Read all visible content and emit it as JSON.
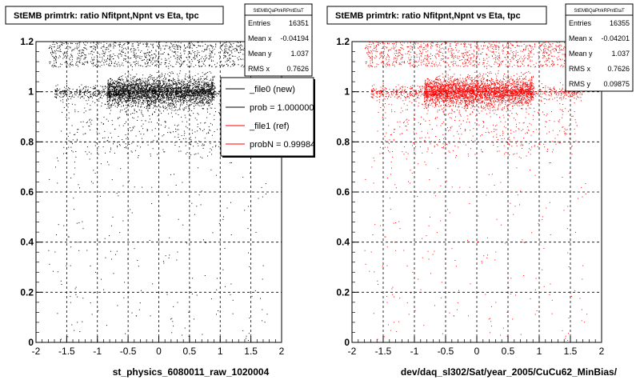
{
  "chart_data": [
    {
      "type": "scatter",
      "title": "StEMB primtrk: ratio Nfitpnt,Npnt vs Eta, tpc",
      "xlabel": "st_physics_6080011_raw_1020004",
      "ylabel": "",
      "xlim": [
        -2,
        2
      ],
      "ylim": [
        0,
        1.2
      ],
      "xticks": [
        "-2",
        "-1.5",
        "-1",
        "-0.5",
        "0",
        "0.5",
        "1",
        "1.5",
        "2"
      ],
      "yticks": [
        "0",
        "0.2",
        "0.4",
        "0.6",
        "0.8",
        "1",
        "1.2"
      ],
      "grid": true,
      "marker_color": "#000000",
      "stats": {
        "title": "StEMBQaPtrkRPntEtaT",
        "rows": [
          {
            "label": "Entries",
            "value": "16351"
          },
          {
            "label": "Mean x",
            "value": "-0.04194"
          },
          {
            "label": "Mean y",
            "value": "1.037"
          },
          {
            "label": "RMS x",
            "value": "0.7626"
          }
        ]
      },
      "legend": {
        "placement": "top-right",
        "entries": [
          {
            "label": "_file0 (new)",
            "color": "#000000"
          },
          {
            "label": "prob = 1.000000",
            "color": "#000000"
          },
          {
            "label": "_file1 (ref)",
            "color": "#ff0000"
          },
          {
            "label": "probN = 0.99984",
            "color": "#ff0000"
          }
        ]
      }
    },
    {
      "type": "scatter",
      "title": "StEMB primtrk: ratio Nfitpnt,Npnt vs Eta, tpc",
      "xlabel": "dev/daq_sl302/Sat/year_2005/CuCu62_MinBias/",
      "ylabel": "",
      "xlim": [
        -2,
        2
      ],
      "ylim": [
        0,
        1.2
      ],
      "xticks": [
        "-2",
        "-1.5",
        "-1",
        "-0.5",
        "0",
        "0.5",
        "1",
        "1.5",
        "2"
      ],
      "yticks": [
        "0",
        "0.2",
        "0.4",
        "0.6",
        "0.8",
        "1",
        "1.2"
      ],
      "grid": true,
      "marker_color": "#ff0000",
      "stats": {
        "title": "StEMBQaPtrkRPntEtaT",
        "rows": [
          {
            "label": "Entries",
            "value": "16355"
          },
          {
            "label": "Mean x",
            "value": "-0.04201"
          },
          {
            "label": "Mean y",
            "value": "1.037"
          },
          {
            "label": "RMS x",
            "value": "0.7626"
          },
          {
            "label": "RMS y",
            "value": "0.09875"
          }
        ]
      }
    }
  ]
}
